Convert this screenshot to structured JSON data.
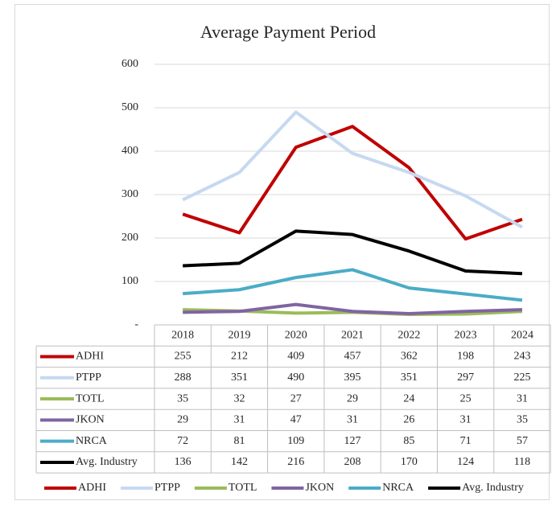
{
  "chart_data": {
    "type": "line",
    "title": "Average Payment Period",
    "categories": [
      "2018",
      "2019",
      "2020",
      "2021",
      "2022",
      "2023",
      "2024"
    ],
    "series": [
      {
        "name": "ADHI",
        "color": "#c00000",
        "values": [
          255,
          212,
          409,
          457,
          362,
          198,
          243
        ]
      },
      {
        "name": "PTPP",
        "color": "#c6d9f1",
        "values": [
          288,
          351,
          490,
          395,
          351,
          297,
          225
        ]
      },
      {
        "name": "TOTL",
        "color": "#9bbb59",
        "values": [
          35,
          32,
          27,
          29,
          24,
          25,
          31
        ]
      },
      {
        "name": "JKON",
        "color": "#8064a2",
        "values": [
          29,
          31,
          47,
          31,
          26,
          31,
          35
        ]
      },
      {
        "name": "NRCA",
        "color": "#4bacc6",
        "values": [
          72,
          81,
          109,
          127,
          85,
          71,
          57
        ]
      },
      {
        "name": "Avg. Industry",
        "color": "#000000",
        "values": [
          136,
          142,
          216,
          208,
          170,
          124,
          118
        ]
      }
    ],
    "ylim": [
      0,
      600
    ],
    "yticks": [
      {
        "value": 0,
        "label": "-"
      },
      100,
      200,
      300,
      400,
      500,
      600
    ],
    "grid": true,
    "data_table": true,
    "legend": "bottom"
  }
}
